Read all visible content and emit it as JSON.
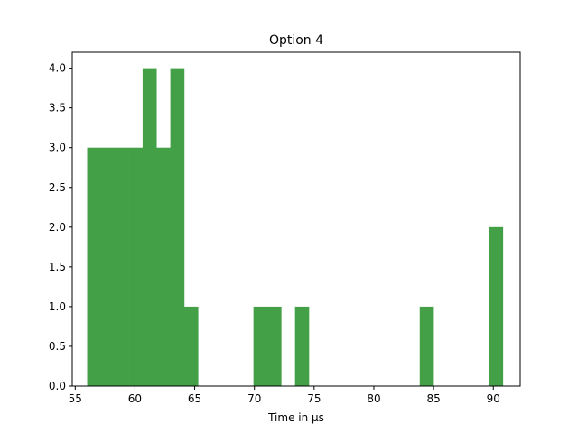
{
  "chart_data": {
    "type": "bar",
    "title": "Option 4",
    "xlabel": "Time in μs",
    "ylabel": "",
    "xlim": [
      54.75,
      92.25
    ],
    "ylim": [
      0,
      4.2
    ],
    "grid": false,
    "bar_color": "#43a047",
    "bin_width": 1.16,
    "bins": [
      {
        "x0": 56.0,
        "count": 3
      },
      {
        "x0": 57.16,
        "count": 3
      },
      {
        "x0": 58.32,
        "count": 3
      },
      {
        "x0": 59.48,
        "count": 3
      },
      {
        "x0": 60.64,
        "count": 4
      },
      {
        "x0": 61.8,
        "count": 3
      },
      {
        "x0": 62.96,
        "count": 4
      },
      {
        "x0": 64.12,
        "count": 1
      },
      {
        "x0": 65.28,
        "count": 0
      },
      {
        "x0": 66.44,
        "count": 0
      },
      {
        "x0": 67.6,
        "count": 0
      },
      {
        "x0": 68.76,
        "count": 0
      },
      {
        "x0": 69.92,
        "count": 1
      },
      {
        "x0": 71.08,
        "count": 1
      },
      {
        "x0": 72.24,
        "count": 0
      },
      {
        "x0": 73.4,
        "count": 1
      },
      {
        "x0": 74.56,
        "count": 0
      },
      {
        "x0": 75.72,
        "count": 0
      },
      {
        "x0": 76.88,
        "count": 0
      },
      {
        "x0": 78.04,
        "count": 0
      },
      {
        "x0": 79.2,
        "count": 0
      },
      {
        "x0": 80.36,
        "count": 0
      },
      {
        "x0": 81.52,
        "count": 0
      },
      {
        "x0": 82.68,
        "count": 0
      },
      {
        "x0": 83.84,
        "count": 1
      },
      {
        "x0": 85.0,
        "count": 0
      },
      {
        "x0": 86.16,
        "count": 0
      },
      {
        "x0": 87.32,
        "count": 0
      },
      {
        "x0": 88.48,
        "count": 0
      },
      {
        "x0": 89.64,
        "count": 2
      }
    ],
    "x_ticks": [
      55,
      60,
      65,
      70,
      75,
      80,
      85,
      90
    ],
    "x_tick_labels": [
      "55",
      "60",
      "65",
      "70",
      "75",
      "80",
      "85",
      "90"
    ],
    "y_ticks": [
      0,
      0.5,
      1,
      1.5,
      2,
      2.5,
      3,
      3.5,
      4
    ],
    "y_tick_labels": [
      "0.0",
      "0.5",
      "1.0",
      "1.5",
      "2.0",
      "2.5",
      "3.0",
      "3.5",
      "4.0"
    ]
  }
}
